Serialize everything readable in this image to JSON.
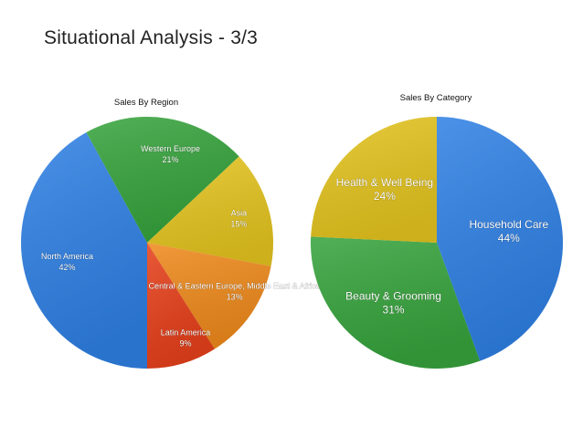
{
  "slide": {
    "title": "Situational Analysis - 3/3"
  },
  "chart_data": [
    {
      "type": "pie",
      "title": "Sales By Region",
      "slices": [
        {
          "label": "North America",
          "value": 42,
          "display": "42%",
          "color": "#2f80e4"
        },
        {
          "label": "Western Europe",
          "value": 21,
          "display": "21%",
          "color": "#36a33c"
        },
        {
          "label": "Asia",
          "value": 15,
          "display": "15%",
          "color": "#e4c41f"
        },
        {
          "label": "Central & Eastern Europe, Middle East & Africa",
          "value": 13,
          "display": "13%",
          "color": "#ef8a1c"
        },
        {
          "label": "Latin America",
          "value": 9,
          "display": "9%",
          "color": "#e6401a"
        }
      ]
    },
    {
      "type": "pie",
      "title": "Sales By Category",
      "slices": [
        {
          "label": "Household Care",
          "value": 44,
          "display": "44%",
          "color": "#2f80e4"
        },
        {
          "label": "Beauty & Grooming",
          "value": 31,
          "display": "31%",
          "color": "#36a33c"
        },
        {
          "label": "Health & Well Being",
          "value": 24,
          "display": "24%",
          "color": "#e4c41f"
        }
      ]
    }
  ]
}
